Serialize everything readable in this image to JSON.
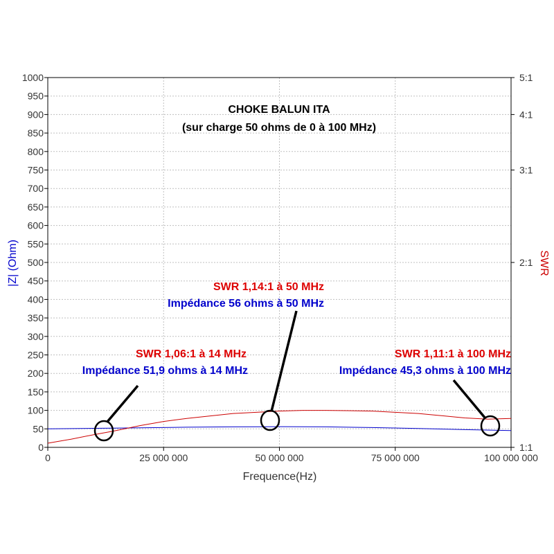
{
  "chart_data": {
    "type": "line",
    "title": "CHOKE BALUN ITA",
    "subtitle": "(sur charge 50 ohms de 0 à 100 MHz)",
    "xlabel": "Frequence(Hz)",
    "ylabel_left": "|Z| (Ohm)",
    "ylabel_right": "SWR",
    "xlim": [
      0,
      100000000
    ],
    "ylim_left": [
      0,
      1000
    ],
    "ylim_right": [
      1,
      5
    ],
    "right_axis_scale": "reflection",
    "grid": true,
    "x_ticks": [
      {
        "value": 0,
        "label": "0"
      },
      {
        "value": 25000000,
        "label": "25 000 000"
      },
      {
        "value": 50000000,
        "label": "50 000 000"
      },
      {
        "value": 75000000,
        "label": "75 000 000"
      },
      {
        "value": 100000000,
        "label": "100 000 000"
      }
    ],
    "y_left_ticks": [
      {
        "value": 0,
        "label": "0"
      },
      {
        "value": 50,
        "label": "50"
      },
      {
        "value": 100,
        "label": "100"
      },
      {
        "value": 150,
        "label": "150"
      },
      {
        "value": 200,
        "label": "200"
      },
      {
        "value": 250,
        "label": "250"
      },
      {
        "value": 300,
        "label": "300"
      },
      {
        "value": 350,
        "label": "350"
      },
      {
        "value": 400,
        "label": "400"
      },
      {
        "value": 450,
        "label": "450"
      },
      {
        "value": 500,
        "label": "500"
      },
      {
        "value": 550,
        "label": "550"
      },
      {
        "value": 600,
        "label": "600"
      },
      {
        "value": 650,
        "label": "650"
      },
      {
        "value": 700,
        "label": "700"
      },
      {
        "value": 750,
        "label": "750"
      },
      {
        "value": 800,
        "label": "800"
      },
      {
        "value": 850,
        "label": "850"
      },
      {
        "value": 900,
        "label": "900"
      },
      {
        "value": 950,
        "label": "950"
      },
      {
        "value": 1000,
        "label": "1000"
      }
    ],
    "y_right_ticks": [
      {
        "value": 1,
        "label": "1:1"
      },
      {
        "value": 2,
        "label": "2:1"
      },
      {
        "value": 3,
        "label": "3:1"
      },
      {
        "value": 4,
        "label": "4:1"
      },
      {
        "value": 5,
        "label": "5:1"
      }
    ],
    "series": [
      {
        "axis": "left",
        "color": "#0000cc",
        "x": [
          0,
          10000000,
          14000000,
          20000000,
          30000000,
          40000000,
          50000000,
          60000000,
          70000000,
          80000000,
          90000000,
          100000000
        ],
        "y": [
          50,
          51.5,
          51.9,
          53,
          54.5,
          55.5,
          56,
          55.5,
          53.5,
          51,
          48,
          45.3
        ]
      },
      {
        "axis": "right",
        "color": "#cc0000",
        "x": [
          0,
          5000000,
          10000000,
          14000000,
          20000000,
          25000000,
          30000000,
          40000000,
          50000000,
          55000000,
          60000000,
          70000000,
          80000000,
          90000000,
          95000000,
          100000000
        ],
        "y": [
          1.015,
          1.03,
          1.047,
          1.06,
          1.082,
          1.098,
          1.11,
          1.13,
          1.14,
          1.143,
          1.143,
          1.14,
          1.13,
          1.112,
          1.107,
          1.11
        ]
      }
    ],
    "annotations": [
      {
        "swr_text": "SWR 1,06:1 à 14 MHz",
        "z_text": "Impédance 51,9 ohms à 14 MHz",
        "marker_x": 13000000,
        "marker_z": 40
      },
      {
        "swr_text": "SWR 1,14:1 à 50 MHz",
        "z_text": "Impédance 56 ohms à 50 MHz",
        "marker_x": 50000000,
        "marker_z": 72
      },
      {
        "swr_text": "SWR 1,11:1 à 100 MHz",
        "z_text": "Impédance 45,3 ohms à 100 MHz",
        "marker_x": 100000000,
        "marker_z": 57
      }
    ]
  }
}
